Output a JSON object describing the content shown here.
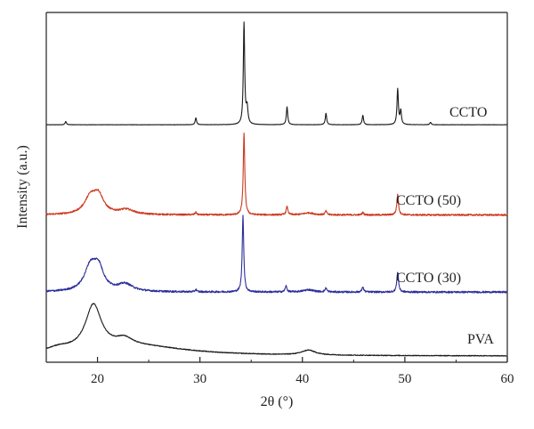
{
  "chart_data": {
    "type": "line",
    "xlabel": "2θ (°)",
    "ylabel": "Intensity (a.u.)",
    "xlim": [
      15,
      60
    ],
    "x_ticks": [
      20,
      30,
      40,
      50,
      60
    ],
    "y_ticks": [],
    "grid": false,
    "legend": "none",
    "series": [
      {
        "name": "CCTO",
        "color": "#1a1a1a",
        "baseline": 0.92,
        "noise": 0.12,
        "peaks": [
          {
            "x": 16.9,
            "h": 1.2,
            "w": 0.08
          },
          {
            "x": 29.6,
            "h": 2.5,
            "w": 0.08
          },
          {
            "x": 34.3,
            "h": 37.0,
            "w": 0.08
          },
          {
            "x": 34.6,
            "h": 6.0,
            "w": 0.1
          },
          {
            "x": 38.5,
            "h": 6.5,
            "w": 0.08
          },
          {
            "x": 42.3,
            "h": 4.2,
            "w": 0.08
          },
          {
            "x": 45.9,
            "h": 3.5,
            "w": 0.08
          },
          {
            "x": 49.3,
            "h": 13.0,
            "w": 0.08
          },
          {
            "x": 49.6,
            "h": 5.0,
            "w": 0.08
          },
          {
            "x": 52.5,
            "h": 0.9,
            "w": 0.08
          }
        ]
      },
      {
        "name": "CCTO (50)",
        "color": "#cc3a1f",
        "baseline": 0.65,
        "noise": 0.8,
        "peaks": [
          {
            "x": 19.3,
            "h": 8.0,
            "w": 0.7
          },
          {
            "x": 20.1,
            "h": 8.5,
            "w": 0.6
          },
          {
            "x": 22.8,
            "h": 2.4,
            "w": 0.9
          },
          {
            "x": 29.6,
            "h": 1.2,
            "w": 0.1
          },
          {
            "x": 34.3,
            "h": 40.0,
            "w": 0.09
          },
          {
            "x": 38.5,
            "h": 4.0,
            "w": 0.1
          },
          {
            "x": 40.6,
            "h": 1.0,
            "w": 0.6
          },
          {
            "x": 42.3,
            "h": 1.8,
            "w": 0.1
          },
          {
            "x": 45.9,
            "h": 1.2,
            "w": 0.1
          },
          {
            "x": 49.3,
            "h": 10.0,
            "w": 0.1
          }
        ]
      },
      {
        "name": "CCTO (30)",
        "color": "#2e2f9a",
        "baseline": 0.72,
        "noise": 0.8,
        "peaks": [
          {
            "x": 19.3,
            "h": 10.5,
            "w": 0.7
          },
          {
            "x": 20.1,
            "h": 9.5,
            "w": 0.6
          },
          {
            "x": 22.7,
            "h": 3.2,
            "w": 0.9
          },
          {
            "x": 29.6,
            "h": 1.0,
            "w": 0.1
          },
          {
            "x": 34.2,
            "h": 34.0,
            "w": 0.09
          },
          {
            "x": 38.4,
            "h": 2.6,
            "w": 0.1
          },
          {
            "x": 40.6,
            "h": 1.0,
            "w": 0.6
          },
          {
            "x": 42.3,
            "h": 1.7,
            "w": 0.1
          },
          {
            "x": 45.9,
            "h": 2.2,
            "w": 0.1
          },
          {
            "x": 49.3,
            "h": 9.0,
            "w": 0.1
          }
        ]
      },
      {
        "name": "PVA",
        "color": "#1a1a1a",
        "baseline": 0.91,
        "noise": 0.4,
        "peaks": [
          {
            "x": 16.2,
            "h": 2.5,
            "w": 1.5
          },
          {
            "x": 19.6,
            "h": 24.0,
            "w": 0.95
          },
          {
            "x": 22.6,
            "h": 4.0,
            "w": 1.0
          },
          {
            "x": 24.0,
            "h": 5.0,
            "w": 6.0
          },
          {
            "x": 40.6,
            "h": 2.6,
            "w": 0.8
          }
        ]
      }
    ]
  }
}
